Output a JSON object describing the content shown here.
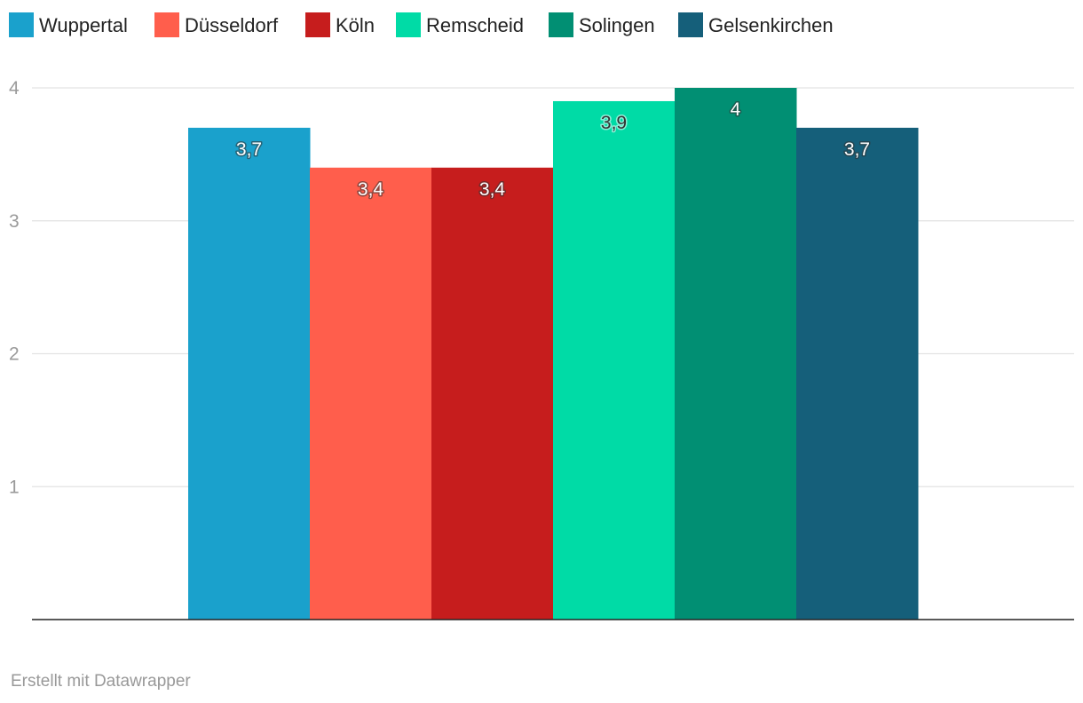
{
  "chart_data": {
    "type": "bar",
    "title": "",
    "xlabel": "",
    "ylabel": "",
    "ylim": [
      0,
      4
    ],
    "yticks": [
      {
        "value": 1,
        "label": "1"
      },
      {
        "value": 2,
        "label": "2"
      },
      {
        "value": 3,
        "label": "3"
      },
      {
        "value": 4,
        "label": "4"
      }
    ],
    "grid": true,
    "legend_position": "top-left",
    "series": [
      {
        "name": "Wuppertal",
        "value": 3.7,
        "label": "3,7",
        "color": "#1aa1cc",
        "label_color": "#ffffff",
        "halo_color": "#333333"
      },
      {
        "name": "Düsseldorf",
        "value": 3.4,
        "label": "3,4",
        "color": "#ff5e4c",
        "label_color": "#ffffff",
        "halo_color": "#333333"
      },
      {
        "name": "Köln",
        "value": 3.4,
        "label": "3,4",
        "color": "#c61d1d",
        "label_color": "#ffffff",
        "halo_color": "#333333"
      },
      {
        "name": "Remscheid",
        "value": 3.9,
        "label": "3,9",
        "color": "#00dba6",
        "label_color": "#333333",
        "halo_color": "#ffffff"
      },
      {
        "name": "Solingen",
        "value": 4,
        "label": "4",
        "color": "#018f73",
        "label_color": "#ffffff",
        "halo_color": "#333333"
      },
      {
        "name": "Gelsenkirchen",
        "value": 3.7,
        "label": "3,7",
        "color": "#155f7a",
        "label_color": "#ffffff",
        "halo_color": "#333333"
      }
    ]
  },
  "footer": {
    "credit": "Erstellt mit Datawrapper"
  }
}
